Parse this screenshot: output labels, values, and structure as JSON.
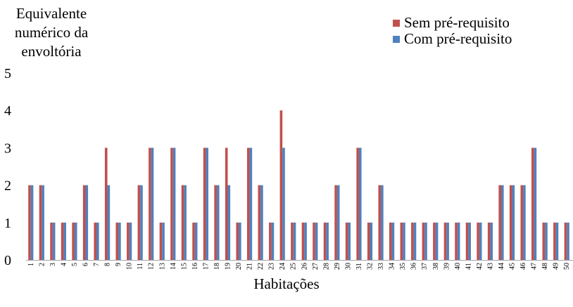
{
  "chart_data": {
    "type": "bar",
    "ylabel": "Equivalente numérico da envoltória",
    "ylabel_lines": [
      "Equivalente",
      "numérico da",
      "envoltória"
    ],
    "xlabel": "Habitações",
    "ylim": [
      0,
      5
    ],
    "yticks": [
      0,
      1,
      2,
      3,
      4,
      5
    ],
    "grid": false,
    "legend_position": "top-right",
    "categories": [
      "1",
      "2",
      "3",
      "4",
      "5",
      "6",
      "7",
      "8",
      "9",
      "10",
      "11",
      "12",
      "13",
      "14",
      "15",
      "16",
      "17",
      "18",
      "19",
      "20",
      "21",
      "22",
      "23",
      "24",
      "25",
      "26",
      "27",
      "28",
      "29",
      "30",
      "31",
      "32",
      "33",
      "34",
      "35",
      "36",
      "37",
      "38",
      "39",
      "40",
      "41",
      "42",
      "43",
      "44",
      "45",
      "46",
      "47",
      "48",
      "49",
      "50"
    ],
    "series": [
      {
        "name": "Sem pré-requisito",
        "color": "#c0504d",
        "values": [
          2,
          2,
          1,
          1,
          1,
          2,
          1,
          3,
          1,
          1,
          2,
          3,
          1,
          3,
          2,
          1,
          3,
          2,
          3,
          1,
          3,
          2,
          1,
          4,
          1,
          1,
          1,
          1,
          2,
          1,
          3,
          1,
          2,
          1,
          1,
          1,
          1,
          1,
          1,
          1,
          1,
          1,
          1,
          2,
          2,
          2,
          3,
          1,
          1,
          1
        ]
      },
      {
        "name": "Com pré-requisito",
        "color": "#4f81bd",
        "values": [
          2,
          2,
          1,
          1,
          1,
          2,
          1,
          2,
          1,
          1,
          2,
          3,
          1,
          3,
          2,
          1,
          3,
          2,
          2,
          1,
          3,
          2,
          1,
          3,
          1,
          1,
          1,
          1,
          2,
          1,
          3,
          1,
          2,
          1,
          1,
          1,
          1,
          1,
          1,
          1,
          1,
          1,
          1,
          2,
          2,
          2,
          3,
          1,
          1,
          1
        ]
      }
    ]
  }
}
